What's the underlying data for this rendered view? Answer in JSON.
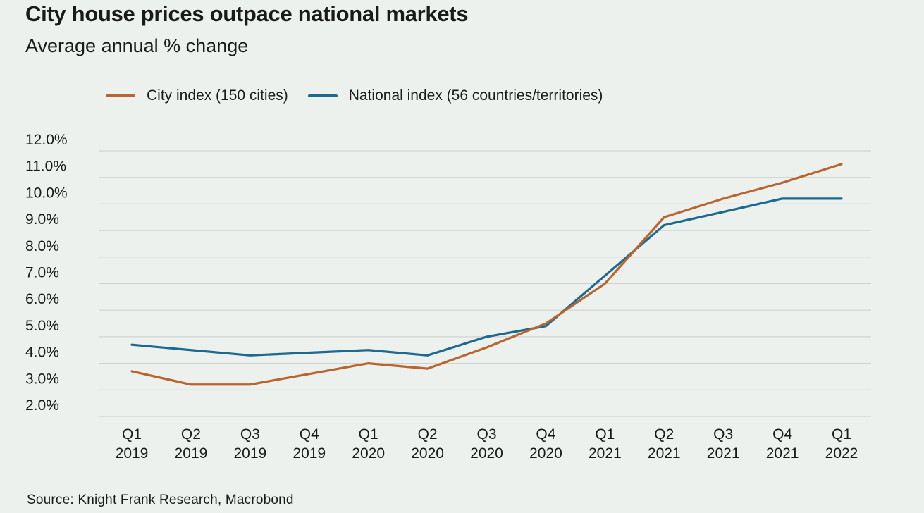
{
  "chart_data": {
    "type": "line",
    "title": "City house prices outpace national markets",
    "subtitle": "Average annual % change",
    "categories": [
      [
        "Q1",
        "2019"
      ],
      [
        "Q2",
        "2019"
      ],
      [
        "Q3",
        "2019"
      ],
      [
        "Q4",
        "2019"
      ],
      [
        "Q1",
        "2020"
      ],
      [
        "Q2",
        "2020"
      ],
      [
        "Q3",
        "2020"
      ],
      [
        "Q4",
        "2020"
      ],
      [
        "Q1",
        "2021"
      ],
      [
        "Q2",
        "2021"
      ],
      [
        "Q3",
        "2021"
      ],
      [
        "Q4",
        "2021"
      ],
      [
        "Q1",
        "2022"
      ]
    ],
    "series": [
      {
        "name": "City index (150 cities)",
        "color": "#b8652f",
        "values": [
          3.7,
          3.2,
          3.2,
          3.6,
          4.0,
          3.8,
          4.6,
          5.5,
          7.0,
          9.5,
          10.2,
          10.8,
          11.5
        ]
      },
      {
        "name": "National index (56 countries/territories)",
        "color": "#1e6a8f",
        "values": [
          4.7,
          4.5,
          4.3,
          4.4,
          4.5,
          4.3,
          5.0,
          5.4,
          7.3,
          9.2,
          9.7,
          10.2,
          10.2
        ]
      }
    ],
    "yticks": [
      "12.0%",
      "11.0%",
      "10.0%",
      "9.0%",
      "8.0%",
      "7.0%",
      "6.0%",
      "5.0%",
      "4.0%",
      "3.0%",
      "2.0%"
    ],
    "ylim": [
      2.0,
      12.0
    ],
    "grid": true,
    "legend": "top-left",
    "source": "Source: Knight Frank Research, Macrobond"
  }
}
